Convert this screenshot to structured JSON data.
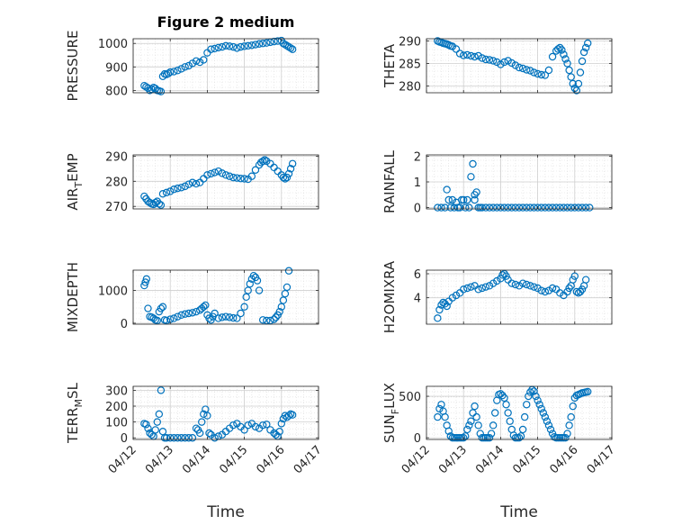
{
  "figure_title": "Figure 2 medium",
  "chart_data": [
    {
      "type": "scatter",
      "ylabel": "PRESSURE",
      "ylim": [
        790,
        1020
      ],
      "yticks": [
        "800",
        "900",
        "1000"
      ],
      "ytick_values": [
        800,
        900,
        1000
      ],
      "xlim": [
        "04/12",
        "04/17"
      ],
      "xticks": [
        "04/12",
        "04/13",
        "04/14",
        "04/15",
        "04/16",
        "04/17"
      ],
      "show_xticks": false,
      "grid": true,
      "marker_color": "#0072BD",
      "x": [
        12.3,
        12.35,
        12.4,
        12.45,
        12.5,
        12.55,
        12.6,
        12.65,
        12.7,
        12.75,
        12.8,
        12.85,
        12.9,
        12.95,
        13.0,
        13.1,
        13.2,
        13.3,
        13.4,
        13.5,
        13.6,
        13.7,
        13.8,
        13.9,
        14.0,
        14.1,
        14.2,
        14.3,
        14.4,
        14.5,
        14.6,
        14.7,
        14.8,
        14.9,
        15.0,
        15.1,
        15.2,
        15.3,
        15.4,
        15.5,
        15.6,
        15.7,
        15.8,
        15.9,
        16.0,
        16.05,
        16.1,
        16.15,
        16.2,
        16.25,
        16.3
      ],
      "y": [
        820,
        815,
        810,
        800,
        805,
        812,
        808,
        800,
        798,
        795,
        860,
        870,
        868,
        872,
        878,
        880,
        885,
        892,
        900,
        905,
        915,
        925,
        920,
        930,
        960,
        975,
        978,
        982,
        985,
        990,
        988,
        985,
        980,
        985,
        988,
        990,
        992,
        995,
        998,
        1000,
        1002,
        1005,
        1008,
        1010,
        1012,
        1000,
        995,
        990,
        985,
        980,
        975
      ]
    },
    {
      "type": "scatter",
      "ylabel": "THETA",
      "ylim": [
        278.5,
        290.5
      ],
      "yticks": [
        "280",
        "285",
        "290"
      ],
      "ytick_values": [
        280,
        285,
        290
      ],
      "xlim": [
        "04/12",
        "04/17"
      ],
      "xticks": [
        "04/12",
        "04/13",
        "04/14",
        "04/15",
        "04/16",
        "04/17"
      ],
      "show_xticks": false,
      "grid": true,
      "marker_color": "#0072BD",
      "x": [
        12.3,
        12.35,
        12.4,
        12.45,
        12.5,
        12.55,
        12.6,
        12.65,
        12.7,
        12.8,
        12.9,
        13.0,
        13.1,
        13.2,
        13.3,
        13.4,
        13.5,
        13.6,
        13.7,
        13.8,
        13.9,
        14.0,
        14.1,
        14.2,
        14.3,
        14.4,
        14.5,
        14.6,
        14.7,
        14.8,
        14.9,
        15.0,
        15.1,
        15.2,
        15.3,
        15.4,
        15.5,
        15.55,
        15.6,
        15.65,
        15.7,
        15.75,
        15.8,
        15.85,
        15.9,
        15.95,
        16.0,
        16.05,
        16.1,
        16.15,
        16.2,
        16.25,
        16.3,
        16.35
      ],
      "y": [
        290,
        289.8,
        289.7,
        289.5,
        289.4,
        289.3,
        289.1,
        288.9,
        288.8,
        288.2,
        287.2,
        286.8,
        286.9,
        286.7,
        286.5,
        286.7,
        286.2,
        285.9,
        285.8,
        285.6,
        285.3,
        284.8,
        285.3,
        285.6,
        285.1,
        284.6,
        284.1,
        283.9,
        283.6,
        283.4,
        283.0,
        282.7,
        282.5,
        282.4,
        283.5,
        286.5,
        287.8,
        288.2,
        288.5,
        288.0,
        287.0,
        286.0,
        285.0,
        283.5,
        282.0,
        280.5,
        279.5,
        279.0,
        280.5,
        283.0,
        285.5,
        287.5,
        288.5,
        289.5
      ]
    },
    {
      "type": "scatter",
      "ylabel": "AIR_TEMP",
      "ylabel_main": "AIR",
      "ylabel_sub": "T",
      "ylabel_rest": "EMP",
      "ylim": [
        269,
        290.5
      ],
      "yticks": [
        "270",
        "280",
        "290"
      ],
      "ytick_values": [
        270,
        280,
        290
      ],
      "xlim": [
        "04/12",
        "04/17"
      ],
      "xticks": [
        "04/12",
        "04/13",
        "04/14",
        "04/15",
        "04/16",
        "04/17"
      ],
      "show_xticks": false,
      "grid": true,
      "marker_color": "#0072BD",
      "x": [
        12.3,
        12.35,
        12.4,
        12.45,
        12.5,
        12.55,
        12.6,
        12.65,
        12.7,
        12.75,
        12.8,
        12.9,
        13.0,
        13.1,
        13.2,
        13.3,
        13.4,
        13.5,
        13.6,
        13.7,
        13.8,
        13.9,
        14.0,
        14.1,
        14.2,
        14.3,
        14.4,
        14.5,
        14.6,
        14.7,
        14.8,
        14.9,
        15.0,
        15.1,
        15.2,
        15.3,
        15.4,
        15.45,
        15.5,
        15.55,
        15.6,
        15.7,
        15.8,
        15.9,
        16.0,
        16.05,
        16.1,
        16.15,
        16.2,
        16.25,
        16.3
      ],
      "y": [
        274,
        273,
        272,
        271.5,
        271,
        270.8,
        271.5,
        272,
        271,
        270.5,
        275,
        275.5,
        276,
        276.8,
        277.2,
        277.5,
        278,
        278.8,
        279.5,
        279,
        279.5,
        281,
        282.5,
        283,
        283.5,
        284,
        283.2,
        282.5,
        282,
        281.5,
        281.3,
        281.1,
        281,
        280.8,
        282,
        284.5,
        286.5,
        287.5,
        288.0,
        288.5,
        288.0,
        287,
        285.5,
        284,
        282.5,
        281.5,
        281,
        281.5,
        283,
        285,
        287
      ]
    },
    {
      "type": "scatter",
      "ylabel": "RAINFALL",
      "ylim": [
        -0.05,
        2.05
      ],
      "yticks": [
        "0",
        "1",
        "2"
      ],
      "ytick_values": [
        0,
        1,
        2
      ],
      "xlim": [
        "04/12",
        "04/17"
      ],
      "xticks": [
        "04/12",
        "04/13",
        "04/14",
        "04/15",
        "04/16",
        "04/17"
      ],
      "show_xticks": false,
      "grid": true,
      "marker_color": "#0072BD",
      "x": [
        12.3,
        12.4,
        12.5,
        12.55,
        12.6,
        12.65,
        12.7,
        12.75,
        12.8,
        12.85,
        12.9,
        12.95,
        13.0,
        13.05,
        13.1,
        13.15,
        13.2,
        13.25,
        13.3,
        13.3,
        13.35,
        13.4,
        13.45,
        13.5,
        13.6,
        13.7,
        13.8,
        13.9,
        14.0,
        14.1,
        14.2,
        14.3,
        14.4,
        14.5,
        14.6,
        14.7,
        14.8,
        14.9,
        15.0,
        15.1,
        15.2,
        15.3,
        15.4,
        15.5,
        15.6,
        15.7,
        15.8,
        15.9,
        16.0,
        16.1,
        16.2,
        16.3,
        16.4
      ],
      "y": [
        0,
        0,
        0,
        0.7,
        0.3,
        0,
        0.3,
        0,
        0.2,
        0,
        0,
        0.3,
        0.3,
        0,
        0.3,
        0,
        1.2,
        1.7,
        0.5,
        0.3,
        0.6,
        0,
        0,
        0,
        0,
        0,
        0,
        0,
        0,
        0,
        0,
        0,
        0,
        0,
        0,
        0,
        0,
        0,
        0,
        0,
        0,
        0,
        0,
        0,
        0,
        0,
        0,
        0,
        0,
        0,
        0,
        0,
        0
      ]
    },
    {
      "type": "scatter",
      "ylabel": "MIXDEPTH",
      "ylim": [
        -30,
        1620
      ],
      "yticks": [
        "0",
        "1000"
      ],
      "ytick_values": [
        0,
        1000
      ],
      "xlim": [
        "04/12",
        "04/17"
      ],
      "xticks": [
        "04/12",
        "04/13",
        "04/14",
        "04/15",
        "04/16",
        "04/17"
      ],
      "show_xticks": false,
      "grid": true,
      "marker_color": "#0072BD",
      "x": [
        12.3,
        12.33,
        12.36,
        12.4,
        12.45,
        12.5,
        12.55,
        12.6,
        12.65,
        12.7,
        12.75,
        12.8,
        12.85,
        12.9,
        13.0,
        13.1,
        13.2,
        13.3,
        13.4,
        13.5,
        13.6,
        13.7,
        13.8,
        13.85,
        13.9,
        13.95,
        14.0,
        14.05,
        14.1,
        14.15,
        14.2,
        14.3,
        14.4,
        14.5,
        14.6,
        14.7,
        14.8,
        14.9,
        15.0,
        15.05,
        15.1,
        15.15,
        15.2,
        15.25,
        15.3,
        15.35,
        15.4,
        15.5,
        15.6,
        15.7,
        15.8,
        15.85,
        15.9,
        15.95,
        16.0,
        16.05,
        16.1,
        16.15,
        16.2
      ],
      "y": [
        1150,
        1250,
        1350,
        450,
        200,
        180,
        150,
        100,
        80,
        350,
        450,
        500,
        100,
        80,
        120,
        150,
        200,
        250,
        280,
        300,
        320,
        350,
        400,
        450,
        500,
        550,
        250,
        150,
        100,
        200,
        300,
        150,
        180,
        200,
        180,
        160,
        150,
        300,
        500,
        800,
        1000,
        1200,
        1350,
        1450,
        1400,
        1300,
        1000,
        100,
        80,
        80,
        120,
        180,
        250,
        350,
        500,
        700,
        900,
        1100,
        1600
      ]
    },
    {
      "type": "scatter",
      "ylabel": "H2OMIXRA",
      "ylim": [
        1.8,
        6.3
      ],
      "yticks": [
        "4",
        "6"
      ],
      "ytick_values": [
        4,
        6
      ],
      "xlim": [
        "04/12",
        "04/17"
      ],
      "xticks": [
        "04/12",
        "04/13",
        "04/14",
        "04/15",
        "04/16",
        "04/17"
      ],
      "show_xticks": false,
      "grid": true,
      "marker_color": "#0072BD",
      "x": [
        12.3,
        12.35,
        12.4,
        12.45,
        12.5,
        12.55,
        12.6,
        12.7,
        12.8,
        12.9,
        13.0,
        13.1,
        13.2,
        13.3,
        13.4,
        13.5,
        13.6,
        13.7,
        13.8,
        13.9,
        14.0,
        14.05,
        14.1,
        14.15,
        14.2,
        14.3,
        14.4,
        14.5,
        14.6,
        14.7,
        14.8,
        14.9,
        15.0,
        15.1,
        15.2,
        15.3,
        15.4,
        15.5,
        15.6,
        15.7,
        15.8,
        15.85,
        15.9,
        15.95,
        16.0,
        16.05,
        16.1,
        16.15,
        16.2,
        16.25,
        16.3
      ],
      "y": [
        2.3,
        3.0,
        3.4,
        3.6,
        3.5,
        3.3,
        3.7,
        4.0,
        4.2,
        4.4,
        4.7,
        4.8,
        4.9,
        5.0,
        4.7,
        4.8,
        4.9,
        5.0,
        5.2,
        5.4,
        5.6,
        5.9,
        6.0,
        5.8,
        5.5,
        5.2,
        5.1,
        5.0,
        5.2,
        5.1,
        5.0,
        4.9,
        4.8,
        4.6,
        4.5,
        4.6,
        4.8,
        4.7,
        4.4,
        4.2,
        4.5,
        4.8,
        5.0,
        5.5,
        5.8,
        4.5,
        4.4,
        4.5,
        4.7,
        5.0,
        5.5
      ]
    },
    {
      "type": "scatter",
      "ylabel": "TERR_MSL",
      "ylabel_main": "TERR",
      "ylabel_sub": "M",
      "ylabel_rest": "SL",
      "ylim": [
        -10,
        325
      ],
      "yticks": [
        "0",
        "100",
        "200",
        "300"
      ],
      "ytick_values": [
        0,
        100,
        200,
        300
      ],
      "xlim": [
        "04/12",
        "04/17"
      ],
      "xticks": [
        "04/12",
        "04/13",
        "04/14",
        "04/15",
        "04/16",
        "04/17"
      ],
      "show_xticks": true,
      "xlabel": "Time",
      "grid": true,
      "marker_color": "#0072BD",
      "x": [
        12.3,
        12.35,
        12.4,
        12.45,
        12.5,
        12.55,
        12.6,
        12.65,
        12.7,
        12.75,
        12.8,
        12.85,
        12.9,
        13.0,
        13.1,
        13.2,
        13.3,
        13.4,
        13.5,
        13.6,
        13.7,
        13.75,
        13.8,
        13.85,
        13.9,
        13.95,
        14.0,
        14.05,
        14.1,
        14.2,
        14.3,
        14.4,
        14.5,
        14.6,
        14.7,
        14.8,
        14.9,
        15.0,
        15.1,
        15.2,
        15.3,
        15.4,
        15.5,
        15.6,
        15.7,
        15.8,
        15.85,
        15.9,
        15.95,
        16.0,
        16.05,
        16.1,
        16.15,
        16.2,
        16.25,
        16.3
      ],
      "y": [
        90,
        85,
        60,
        30,
        20,
        10,
        50,
        100,
        150,
        300,
        40,
        0,
        0,
        0,
        0,
        0,
        0,
        0,
        0,
        0,
        60,
        50,
        30,
        100,
        150,
        180,
        140,
        30,
        20,
        0,
        10,
        20,
        40,
        60,
        80,
        90,
        70,
        50,
        80,
        90,
        70,
        60,
        80,
        85,
        50,
        30,
        20,
        10,
        40,
        90,
        120,
        140,
        130,
        140,
        150,
        145
      ]
    },
    {
      "type": "scatter",
      "ylabel": "SUN_FLUX",
      "ylabel_main": "SUN",
      "ylabel_sub": "F",
      "ylabel_rest": "LUX",
      "ylim": [
        -20,
        620
      ],
      "yticks": [
        "0",
        "500"
      ],
      "ytick_values": [
        0,
        500
      ],
      "xlim": [
        "04/12",
        "04/17"
      ],
      "xticks": [
        "04/12",
        "04/13",
        "04/14",
        "04/15",
        "04/16",
        "04/17"
      ],
      "show_xticks": true,
      "xlabel": "Time",
      "grid": true,
      "marker_color": "#0072BD",
      "x": [
        12.3,
        12.35,
        12.4,
        12.45,
        12.5,
        12.55,
        12.6,
        12.65,
        12.7,
        12.75,
        12.8,
        12.85,
        12.9,
        12.95,
        13.0,
        13.05,
        13.1,
        13.15,
        13.2,
        13.25,
        13.3,
        13.35,
        13.4,
        13.45,
        13.5,
        13.55,
        13.6,
        13.65,
        13.7,
        13.75,
        13.8,
        13.85,
        13.9,
        13.95,
        14.0,
        14.05,
        14.1,
        14.15,
        14.2,
        14.25,
        14.3,
        14.35,
        14.4,
        14.45,
        14.5,
        14.55,
        14.6,
        14.65,
        14.7,
        14.75,
        14.8,
        14.85,
        14.9,
        14.95,
        15.0,
        15.05,
        15.1,
        15.15,
        15.2,
        15.25,
        15.3,
        15.35,
        15.4,
        15.45,
        15.5,
        15.55,
        15.6,
        15.65,
        15.7,
        15.75,
        15.8,
        15.85,
        15.9,
        15.95,
        16.0,
        16.05,
        16.1,
        16.15,
        16.2,
        16.25,
        16.3,
        16.35
      ],
      "y": [
        250,
        350,
        400,
        320,
        250,
        150,
        80,
        20,
        0,
        0,
        0,
        0,
        0,
        0,
        0,
        20,
        100,
        150,
        200,
        300,
        380,
        250,
        150,
        50,
        0,
        0,
        0,
        0,
        0,
        50,
        150,
        300,
        450,
        520,
        530,
        510,
        480,
        400,
        300,
        200,
        100,
        30,
        0,
        0,
        0,
        20,
        100,
        250,
        400,
        500,
        550,
        580,
        560,
        500,
        450,
        400,
        350,
        300,
        250,
        200,
        150,
        100,
        50,
        10,
        0,
        0,
        0,
        0,
        0,
        0,
        50,
        150,
        250,
        380,
        480,
        510,
        520,
        530,
        540,
        545,
        550,
        555
      ]
    }
  ]
}
